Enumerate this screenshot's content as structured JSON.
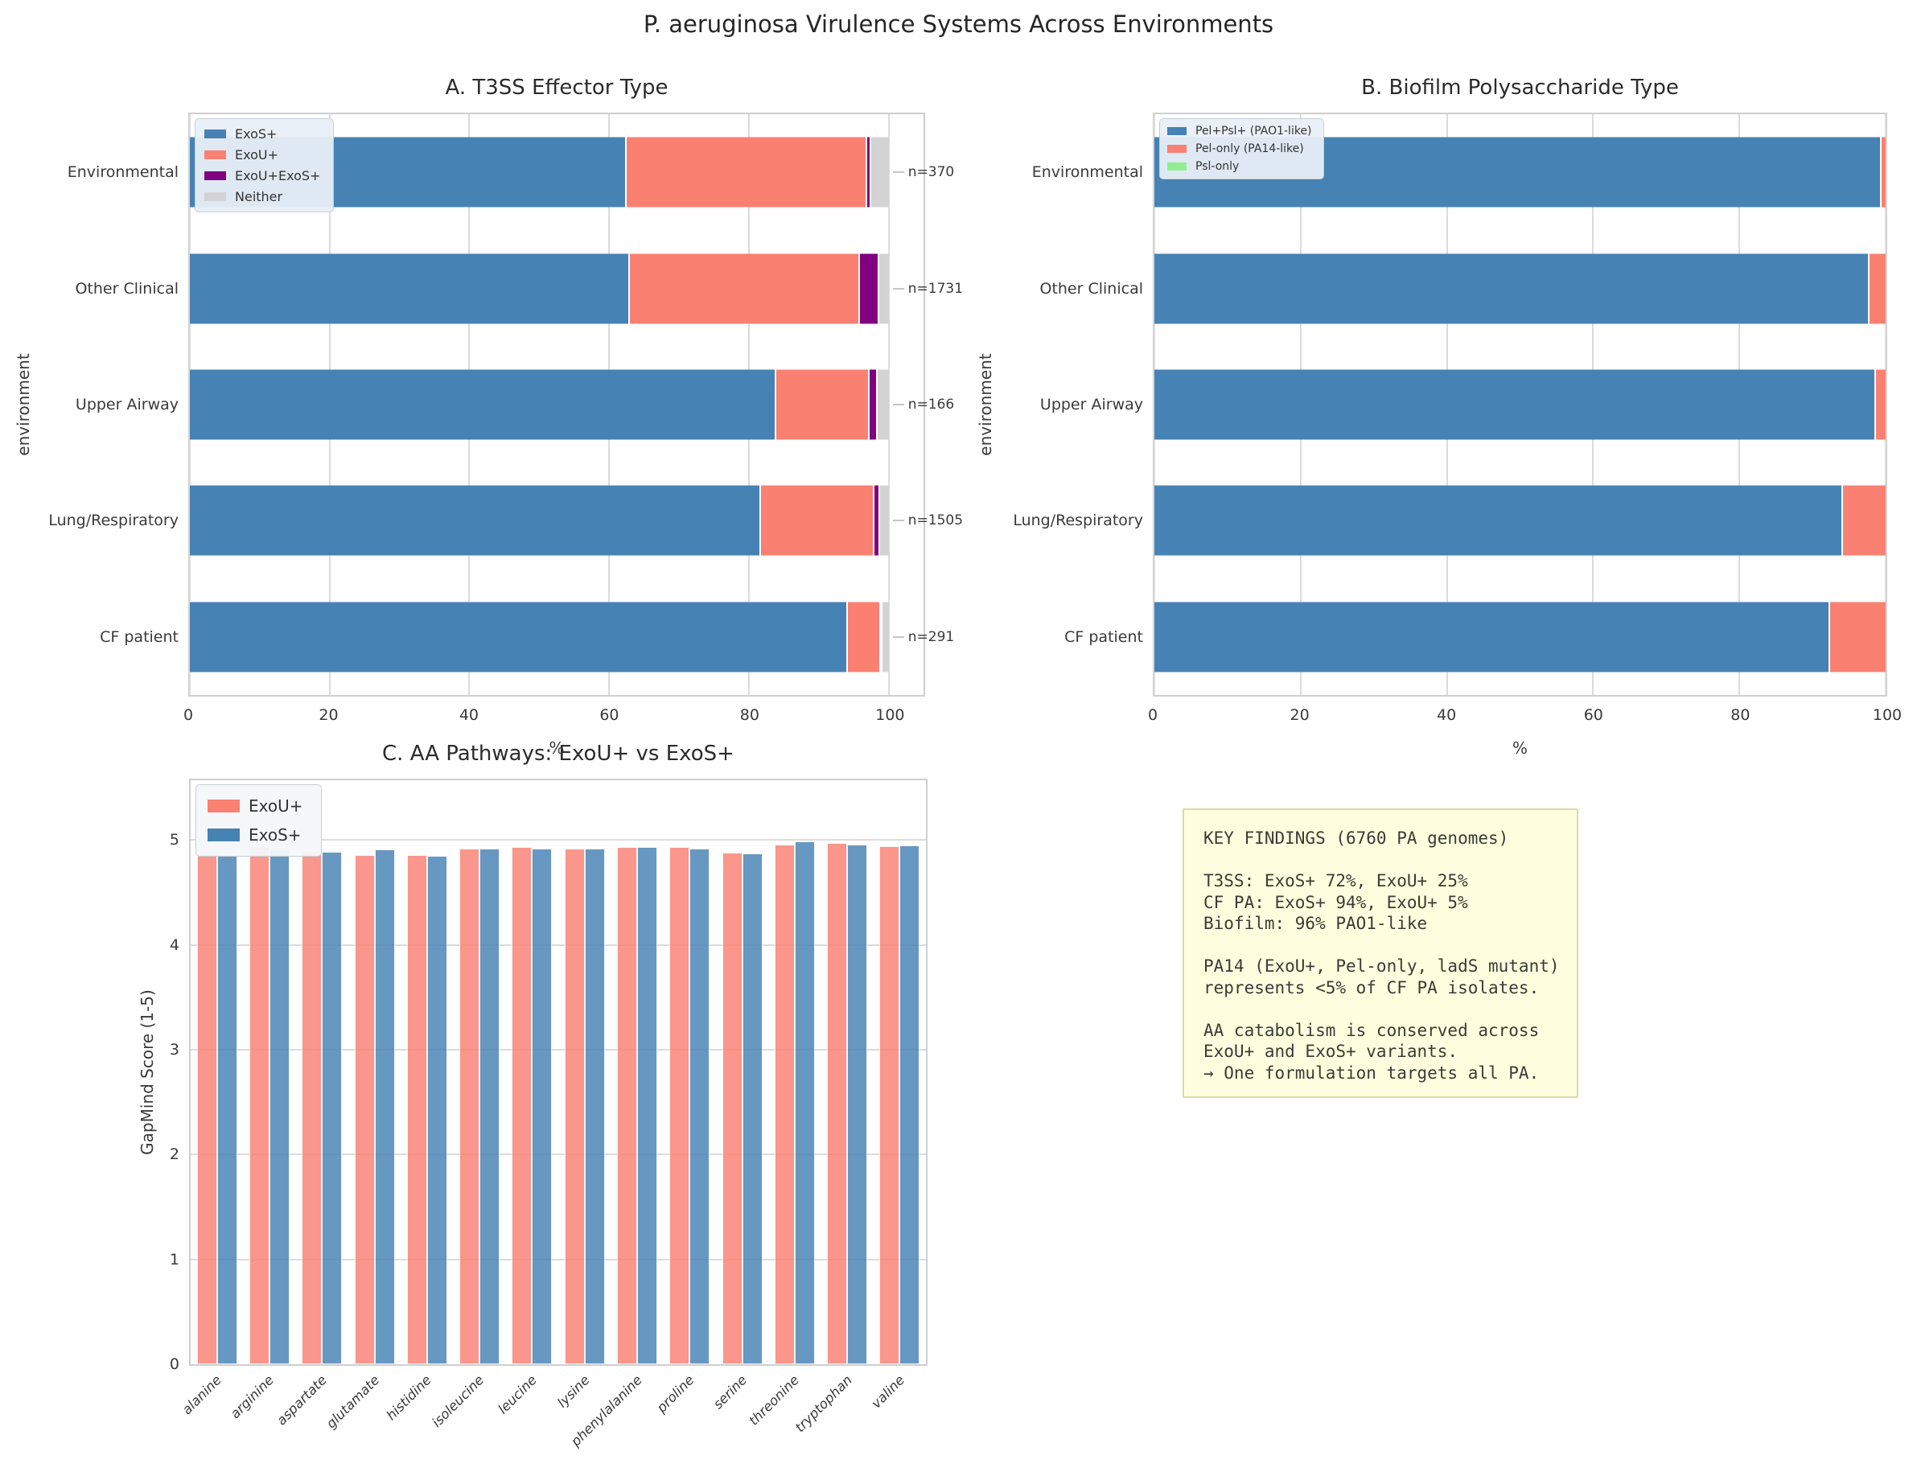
{
  "figure": {
    "title": "P. aeruginosa Virulence Systems Across Environments"
  },
  "chart_data": [
    {
      "id": "t3ss-effector",
      "type": "bar",
      "subtype": "horizontal-stacked",
      "title": "A. T3SS Effector Type",
      "xlabel": "%",
      "ylabel": "environment",
      "xlim": [
        0,
        105
      ],
      "xticks": [
        0,
        20,
        40,
        60,
        80,
        100
      ],
      "grid": "vertical",
      "legend_position": "upper-left",
      "series_names": [
        "ExoS+",
        "ExoU+",
        "ExoU+ExoS+",
        "Neither"
      ],
      "series_colors": [
        "#4682B4",
        "#FA8072",
        "#800080",
        "#D3D3D3"
      ],
      "categories": [
        "Environmental",
        "Other Clinical",
        "Upper Airway",
        "Lung/Respiratory",
        "CF patient"
      ],
      "n_labels": [
        "n=370",
        "n=1731",
        "n=166",
        "n=1505",
        "n=291"
      ],
      "values": [
        [
          62.3,
          34.4,
          0.6,
          2.7
        ],
        [
          62.8,
          32.9,
          2.7,
          1.6
        ],
        [
          83.7,
          13.3,
          1.2,
          1.8
        ],
        [
          81.5,
          16.2,
          0.9,
          1.4
        ],
        [
          94.0,
          4.7,
          0.2,
          1.1
        ]
      ]
    },
    {
      "id": "biofilm-polysaccharide",
      "type": "bar",
      "subtype": "horizontal-stacked",
      "title": "B. Biofilm Polysaccharide Type",
      "xlabel": "%",
      "ylabel": "environment",
      "xlim": [
        0,
        100
      ],
      "xticks": [
        0,
        20,
        40,
        60,
        80,
        100
      ],
      "grid": "vertical",
      "legend_position": "upper-left",
      "series_names": [
        "Pel+Psl+ (PAO1-like)",
        "Pel-only (PA14-like)",
        "Psl-only"
      ],
      "series_colors": [
        "#4682B4",
        "#FA8072",
        "#90EE90"
      ],
      "categories": [
        "Environmental",
        "Other Clinical",
        "Upper Airway",
        "Lung/Respiratory",
        "CF patient"
      ],
      "values": [
        [
          99.2,
          0.8,
          0.0
        ],
        [
          97.6,
          2.4,
          0.0
        ],
        [
          98.5,
          1.5,
          0.0
        ],
        [
          94.0,
          6.0,
          0.0
        ],
        [
          92.2,
          7.8,
          0.0
        ]
      ]
    },
    {
      "id": "aa-pathways",
      "type": "bar",
      "subtype": "vertical-grouped",
      "title": "C. AA Pathways: ExoU+ vs ExoS+",
      "xlabel": "",
      "ylabel": "GapMind Score (1-5)",
      "ylim": [
        0,
        5.57
      ],
      "yticks": [
        0,
        1,
        2,
        3,
        4,
        5
      ],
      "grid": "horizontal",
      "legend_position": "upper-left",
      "categories": [
        "alanine",
        "arginine",
        "aspartate",
        "glutamate",
        "histidine",
        "isoleucine",
        "leucine",
        "lysine",
        "phenylalanine",
        "proline",
        "serine",
        "threonine",
        "tryptophan",
        "valine"
      ],
      "series": [
        {
          "name": "ExoU+",
          "color": "#FA8072",
          "values": [
            4.87,
            4.93,
            4.89,
            4.86,
            4.86,
            4.92,
            4.93,
            4.92,
            4.93,
            4.93,
            4.88,
            4.96,
            4.97,
            4.94
          ]
        },
        {
          "name": "ExoS+",
          "color": "#4682B4",
          "values": [
            4.86,
            4.91,
            4.89,
            4.91,
            4.85,
            4.92,
            4.92,
            4.92,
            4.93,
            4.92,
            4.87,
            4.99,
            4.96,
            4.95
          ]
        }
      ]
    }
  ],
  "key_findings": {
    "text": "KEY FINDINGS (6760 PA genomes)\n\nT3SS: ExoS+ 72%, ExoU+ 25%\nCF PA: ExoS+ 94%, ExoU+ 5%\nBiofilm: 96% PAO1-like\n\nPA14 (ExoU+, Pel-only, ladS mutant)\nrepresents <5% of CF PA isolates.\n\nAA catabolism is conserved across\nExoU+ and ExoS+ variants.\n→ One formulation targets all PA."
  }
}
